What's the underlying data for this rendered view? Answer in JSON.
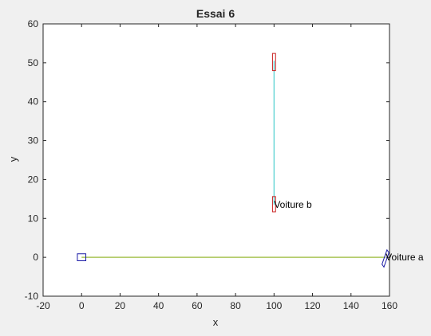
{
  "chart_data": {
    "type": "line",
    "title": "Essai 6",
    "xlabel": "x",
    "ylabel": "y",
    "xlim": [
      -20,
      160
    ],
    "ylim": [
      -10,
      60
    ],
    "xticks": [
      -20,
      0,
      20,
      40,
      60,
      80,
      100,
      120,
      140,
      160
    ],
    "yticks": [
      -10,
      0,
      10,
      20,
      30,
      40,
      50,
      60
    ],
    "grid": false,
    "series": [
      {
        "color": "#9bbb3a",
        "x": [
          0,
          158
        ],
        "y": [
          0,
          0
        ]
      },
      {
        "color": "#4ecfcf",
        "x": [
          100,
          100
        ],
        "y": [
          13.5,
          50.5
        ]
      }
    ],
    "markers": [
      {
        "shape": "rectangle",
        "color": "#1a1aa6",
        "corners": [
          [
            -2.2,
            -0.9
          ],
          [
            2.2,
            -0.9
          ],
          [
            2.2,
            0.9
          ],
          [
            -2.2,
            0.9
          ]
        ]
      },
      {
        "shape": "rectangle",
        "color": "#c81e1e",
        "corners": [
          [
            99.2,
            48
          ],
          [
            100.8,
            48
          ],
          [
            100.8,
            52.4
          ],
          [
            99.2,
            52.4
          ]
        ]
      },
      {
        "shape": "rectangle",
        "color": "#c81e1e",
        "corners": [
          [
            99.2,
            11.7
          ],
          [
            100.8,
            11.7
          ],
          [
            100.8,
            15.6
          ],
          [
            99.2,
            15.6
          ]
        ]
      },
      {
        "shape": "rectangle",
        "color": "#1a1aa6",
        "corners": [
          [
            156.1,
            -1.8
          ],
          [
            158.7,
            1.9
          ],
          [
            159.7,
            1.2
          ],
          [
            157.1,
            -2.5
          ]
        ]
      }
    ],
    "annotations": [
      {
        "text": "Voiture b",
        "x": 100,
        "y": 13.5
      },
      {
        "text": "Voiture a",
        "x": 158,
        "y": 0
      }
    ]
  }
}
